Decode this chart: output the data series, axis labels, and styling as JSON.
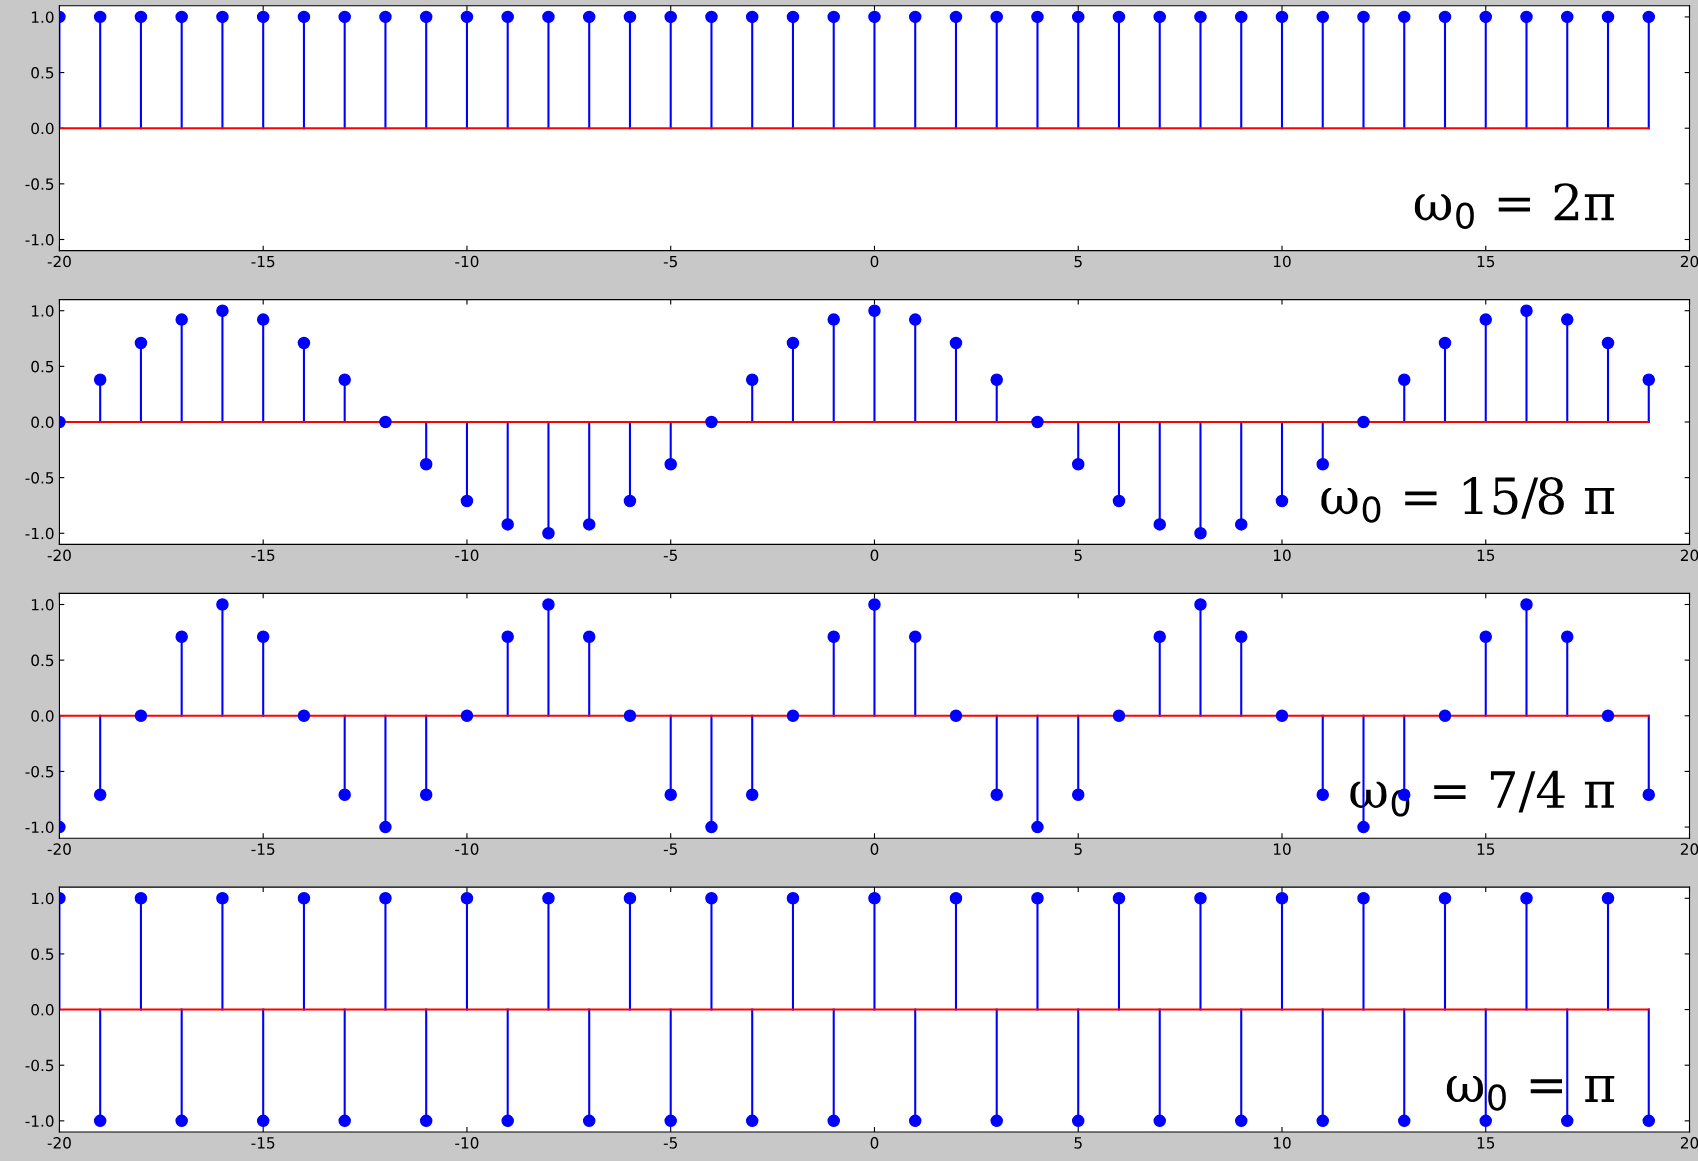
{
  "chart_data": [
    {
      "type": "lollipop",
      "x": [
        -20,
        -19,
        -18,
        -17,
        -16,
        -15,
        -14,
        -13,
        -12,
        -11,
        -10,
        -9,
        -8,
        -7,
        -6,
        -5,
        -4,
        -3,
        -2,
        -1,
        0,
        1,
        2,
        3,
        4,
        5,
        6,
        7,
        8,
        9,
        10,
        11,
        12,
        13,
        14,
        15,
        16,
        17,
        18,
        19
      ],
      "series": [
        {
          "color": "#0000ff",
          "values": [
            1,
            1,
            1,
            1,
            1,
            1,
            1,
            1,
            1,
            1,
            1,
            1,
            1,
            1,
            1,
            1,
            1,
            1,
            1,
            1,
            1,
            1,
            1,
            1,
            1,
            1,
            1,
            1,
            1,
            1,
            1,
            1,
            1,
            1,
            1,
            1,
            1,
            1,
            1,
            1
          ]
        }
      ],
      "marker": "circle",
      "xlim": [
        -20,
        20
      ],
      "xticks": [
        -20,
        -15,
        -10,
        -5,
        0,
        5,
        10,
        15,
        20
      ],
      "ylim": [
        -1.1,
        1.1
      ],
      "yticks": [
        {
          "value": -1,
          "label": "-1.0"
        },
        {
          "value": -0.5,
          "label": "-0.5"
        },
        {
          "value": 0,
          "label": "0.0"
        },
        {
          "value": 0.5,
          "label": "0.5"
        },
        {
          "value": 1,
          "label": "1.0"
        }
      ],
      "ref_lines": [
        {
          "axis": "y",
          "value": 0,
          "color": "#ff0000"
        }
      ],
      "annotations": [
        "ω$_{0}$ = 2π"
      ]
    },
    {
      "type": "lollipop",
      "x": [
        -20,
        -19,
        -18,
        -17,
        -16,
        -15,
        -14,
        -13,
        -12,
        -11,
        -10,
        -9,
        -8,
        -7,
        -6,
        -5,
        -4,
        -3,
        -2,
        -1,
        0,
        1,
        2,
        3,
        4,
        5,
        6,
        7,
        8,
        9,
        10,
        11,
        12,
        13,
        14,
        15,
        16,
        17,
        18,
        19
      ],
      "series": [
        {
          "color": "#0000ff",
          "values": [
            0,
            0.38,
            0.71,
            0.92,
            1,
            0.92,
            0.71,
            0.38,
            0,
            -0.38,
            -0.71,
            -0.92,
            -1,
            -0.92,
            -0.71,
            -0.38,
            0,
            0.38,
            0.71,
            0.92,
            1,
            0.92,
            0.71,
            0.38,
            0,
            -0.38,
            -0.71,
            -0.92,
            -1,
            -0.92,
            -0.71,
            -0.38,
            0,
            0.38,
            0.71,
            0.92,
            1,
            0.92,
            0.71,
            0.38
          ]
        }
      ],
      "marker": "circle",
      "xlim": [
        -20,
        20
      ],
      "xticks": [
        -20,
        -15,
        -10,
        -5,
        0,
        5,
        10,
        15,
        20
      ],
      "ylim": [
        -1.1,
        1.1
      ],
      "yticks": [
        {
          "value": -1,
          "label": "-1.0"
        },
        {
          "value": -0.5,
          "label": "-0.5"
        },
        {
          "value": 0,
          "label": "0.0"
        },
        {
          "value": 0.5,
          "label": "0.5"
        },
        {
          "value": 1,
          "label": "1.0"
        }
      ],
      "ref_lines": [
        {
          "axis": "y",
          "value": 0,
          "color": "#ff0000"
        }
      ],
      "annotations": [
        "ω$_{0}$ = 15/8 π"
      ]
    },
    {
      "type": "lollipop",
      "x": [
        -20,
        -19,
        -18,
        -17,
        -16,
        -15,
        -14,
        -13,
        -12,
        -11,
        -10,
        -9,
        -8,
        -7,
        -6,
        -5,
        -4,
        -3,
        -2,
        -1,
        0,
        1,
        2,
        3,
        4,
        5,
        6,
        7,
        8,
        9,
        10,
        11,
        12,
        13,
        14,
        15,
        16,
        17,
        18,
        19
      ],
      "series": [
        {
          "color": "#0000ff",
          "values": [
            -1,
            -0.71,
            0,
            0.71,
            1,
            0.71,
            0,
            -0.71,
            -1,
            -0.71,
            0,
            0.71,
            1,
            0.71,
            0,
            -0.71,
            -1,
            -0.71,
            0,
            0.71,
            1,
            0.71,
            0,
            -0.71,
            -1,
            -0.71,
            0,
            0.71,
            1,
            0.71,
            0,
            -0.71,
            -1,
            -0.71,
            0,
            0.71,
            1,
            0.71,
            0,
            -0.71
          ]
        }
      ],
      "marker": "circle",
      "xlim": [
        -20,
        20
      ],
      "xticks": [
        -20,
        -15,
        -10,
        -5,
        0,
        5,
        10,
        15,
        20
      ],
      "ylim": [
        -1.1,
        1.1
      ],
      "yticks": [
        {
          "value": -1,
          "label": "-1.0"
        },
        {
          "value": -0.5,
          "label": "-0.5"
        },
        {
          "value": 0,
          "label": "0.0"
        },
        {
          "value": 0.5,
          "label": "0.5"
        },
        {
          "value": 1,
          "label": "1.0"
        }
      ],
      "ref_lines": [
        {
          "axis": "y",
          "value": 0,
          "color": "#ff0000"
        }
      ],
      "annotations": [
        "ω$_{0}$ = 7/4 π"
      ]
    },
    {
      "type": "lollipop",
      "x": [
        -20,
        -19,
        -18,
        -17,
        -16,
        -15,
        -14,
        -13,
        -12,
        -11,
        -10,
        -9,
        -8,
        -7,
        -6,
        -5,
        -4,
        -3,
        -2,
        -1,
        0,
        1,
        2,
        3,
        4,
        5,
        6,
        7,
        8,
        9,
        10,
        11,
        12,
        13,
        14,
        15,
        16,
        17,
        18,
        19
      ],
      "series": [
        {
          "color": "#0000ff",
          "values": [
            1,
            -1,
            1,
            -1,
            1,
            -1,
            1,
            -1,
            1,
            -1,
            1,
            -1,
            1,
            -1,
            1,
            -1,
            1,
            -1,
            1,
            -1,
            1,
            -1,
            1,
            -1,
            1,
            -1,
            1,
            -1,
            1,
            -1,
            1,
            -1,
            1,
            -1,
            1,
            -1,
            1,
            -1,
            1,
            -1
          ]
        }
      ],
      "marker": "circle",
      "xlim": [
        -20,
        20
      ],
      "xticks": [
        -20,
        -15,
        -10,
        -5,
        0,
        5,
        10,
        15,
        20
      ],
      "ylim": [
        -1.1,
        1.1
      ],
      "yticks": [
        {
          "value": -1,
          "label": "-1.0"
        },
        {
          "value": -0.5,
          "label": "-0.5"
        },
        {
          "value": 0,
          "label": "0.0"
        },
        {
          "value": 0.5,
          "label": "0.5"
        },
        {
          "value": 1,
          "label": "1.0"
        }
      ],
      "ref_lines": [
        {
          "axis": "y",
          "value": 0,
          "color": "#ff0000"
        }
      ],
      "annotations": [
        "ω$_{0}$ = π"
      ]
    }
  ]
}
